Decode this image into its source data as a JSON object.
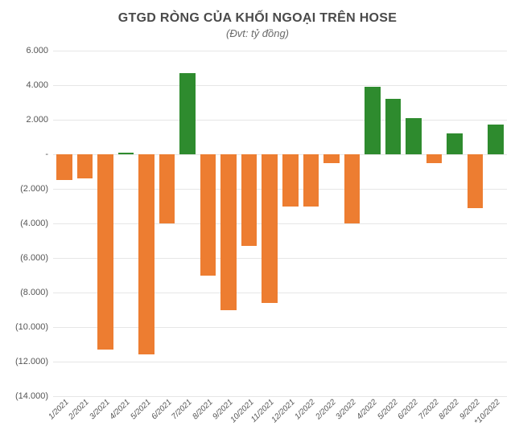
{
  "chart": {
    "type": "bar",
    "title": "GTGD RÒNG CỦA KHỐI NGOẠI TRÊN HOSE",
    "subtitle": "(Đvt: tỷ đồng)",
    "title_fontsize": 16,
    "subtitle_fontsize": 13,
    "title_color": "#4a4a4a",
    "subtitle_color": "#6a6a6a",
    "background_color": "#ffffff",
    "grid_color": "#e6e6e6",
    "ylim": [
      -14000,
      6000
    ],
    "ytick_step": 2000,
    "yticks": [
      6000,
      4000,
      2000,
      0,
      -2000,
      -4000,
      -6000,
      -8000,
      -10000,
      -12000,
      -14000
    ],
    "ytick_labels": [
      "6.000",
      "4.000",
      "2.000",
      " -",
      "(2.000)",
      "(4.000)",
      "(6.000)",
      "(8.000)",
      "(10.000)",
      "(12.000)",
      "(14.000)"
    ],
    "categories": [
      "1/2021",
      "2/2021",
      "3/2021",
      "4/2021",
      "5/2021",
      "6/2021",
      "7/2021",
      "8/2021",
      "9/2021",
      "10/2021",
      "11/2021",
      "12/2021",
      "1/2022",
      "2/2022",
      "3/2022",
      "4/2022",
      "5/2022",
      "6/2022",
      "7/2022",
      "8/2022",
      "9/2022",
      "*10/2022"
    ],
    "values": [
      -1500,
      -1400,
      -11300,
      100,
      -11600,
      -4000,
      4700,
      -7000,
      -9000,
      -5300,
      -8600,
      -3000,
      -3000,
      -500,
      -4000,
      3900,
      3200,
      2100,
      -500,
      1200,
      -3100,
      1700
    ],
    "positive_color": "#2e8b2e",
    "negative_color": "#ed7d31",
    "bar_width_ratio": 1.0,
    "axis_label_fontsize": 11,
    "xlabel_fontsize": 10,
    "xlabel_rotation": -45,
    "xlabel_style": "italic"
  }
}
